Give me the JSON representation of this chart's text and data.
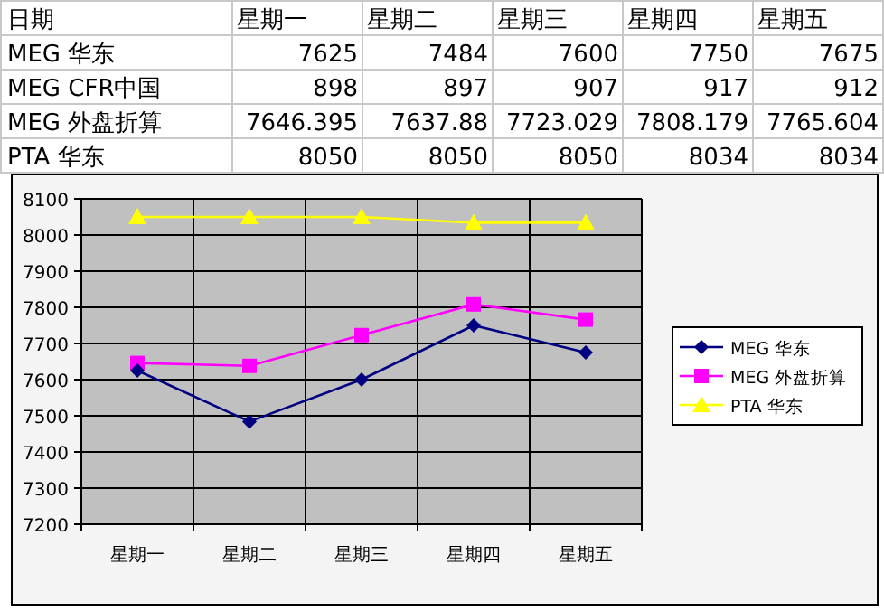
{
  "chart_data": [
    {
      "type": "other",
      "title": "日期",
      "data_labels": true,
      "categories": [
        "星期一",
        "星期二",
        "星期三",
        "星期四",
        "星期五"
      ],
      "series": [
        {
          "name": "MEG 华东",
          "values": [
            7625,
            7484,
            7600,
            7750,
            7675
          ]
        },
        {
          "name": "MEG CFR中国",
          "values": [
            898,
            897,
            907,
            917,
            912
          ]
        },
        {
          "name": "MEG 外盘折算",
          "values": [
            7646.395,
            7637.88,
            7723.029,
            7808.179,
            7765.604
          ]
        },
        {
          "name": "PTA 华东",
          "values": [
            8050,
            8050,
            8050,
            8034,
            8034
          ]
        }
      ]
    },
    {
      "type": "line",
      "categories": [
        "星期一",
        "星期二",
        "星期三",
        "星期四",
        "星期五"
      ],
      "ylim": [
        7200,
        8100
      ],
      "yticks": [
        7200,
        7300,
        7400,
        7500,
        7600,
        7700,
        7800,
        7900,
        8000,
        8100
      ],
      "grid": true,
      "legend": "right",
      "series": [
        {
          "name": "MEG 华东",
          "color": "#000080",
          "marker": "diamond",
          "values": [
            7625,
            7484,
            7600,
            7750,
            7675
          ]
        },
        {
          "name": "MEG 外盘折算",
          "color": "#ff00ff",
          "marker": "square",
          "values": [
            7646,
            7638,
            7723,
            7808,
            7766
          ]
        },
        {
          "name": "PTA 华东",
          "color": "#ffff00",
          "marker": "triangle",
          "values": [
            8050,
            8050,
            8050,
            8034,
            8034
          ]
        }
      ]
    }
  ]
}
